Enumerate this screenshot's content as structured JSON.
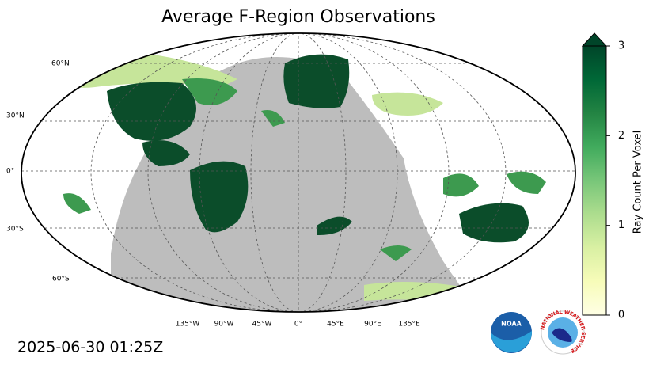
{
  "title": "Average F-Region Observations",
  "timestamp": "2025-06-30 01:25Z",
  "map": {
    "lat_labels": [
      "60°N",
      "30°N",
      "0°",
      "30°S",
      "60°S"
    ],
    "lon_labels": [
      "135°W",
      "90°W",
      "45°W",
      "0°",
      "45°E",
      "90°E",
      "135°E"
    ]
  },
  "colorbar": {
    "label": "Ray Count Per Voxel",
    "lim": [
      0,
      3
    ],
    "ticks": [
      0,
      1,
      2,
      3
    ],
    "extend": "max",
    "colors": [
      "#ffffe5",
      "#f7fcb9",
      "#d9f0a3",
      "#addd8e",
      "#78c679",
      "#41ab5d",
      "#238443",
      "#006837",
      "#004529"
    ]
  },
  "logos": {
    "noaa": "NOAA",
    "nws": "NATIONAL WEATHER SERVICE"
  }
}
